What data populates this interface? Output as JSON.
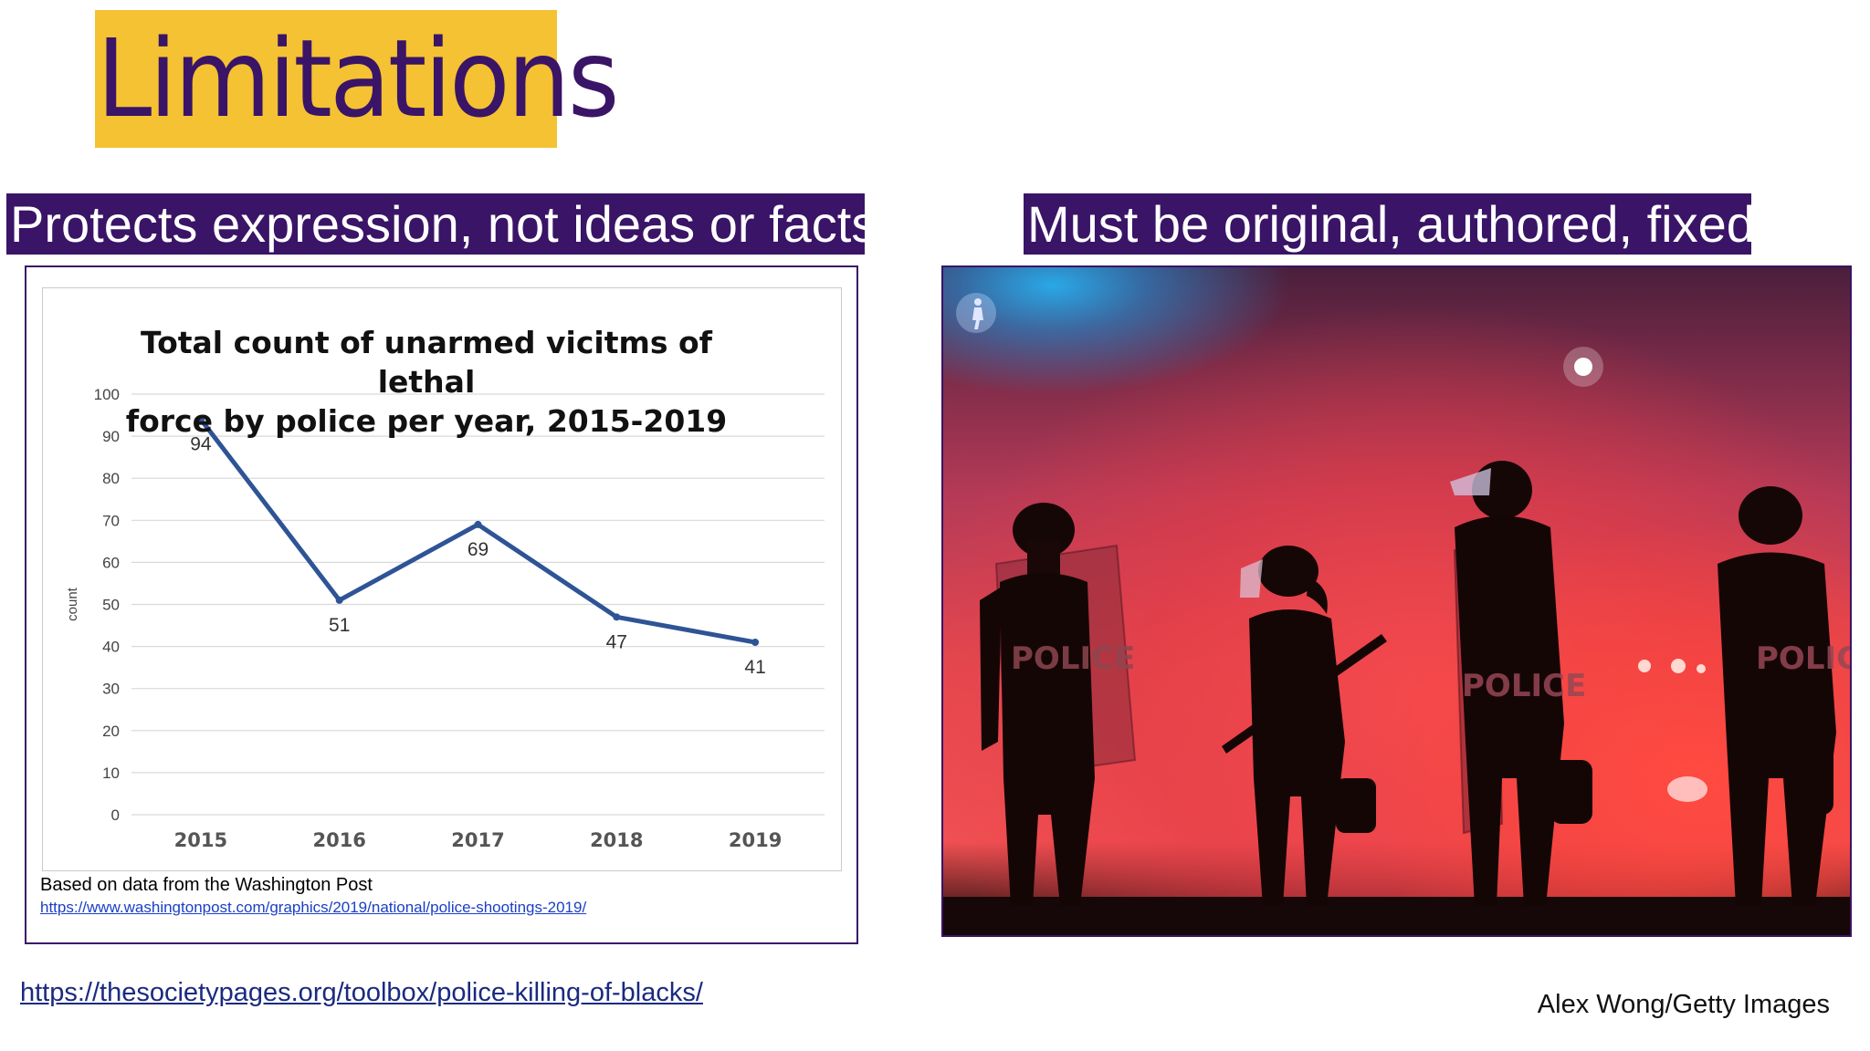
{
  "slide": {
    "title": "Limitations",
    "left_heading": "Protects expression, not ideas or facts",
    "right_heading": "Must be original, authored, fixed",
    "footer_link": "https://thesocietypages.org/toolbox/police-killing-of-blacks/",
    "photo_credit": "Alex Wong/Getty Images",
    "photo_text": "POLICE"
  },
  "chart_note": {
    "source": "Based on data from the Washington Post",
    "url": "https://www.washingtonpost.com/graphics/2019/national/police-shootings-2019/"
  },
  "colors": {
    "title_bg": "#f4c232",
    "accent_purple": "#3a1466",
    "line": "#2e5496"
  },
  "chart_data": {
    "type": "line",
    "title_line1": "Total count of unarmed vicitms of lethal",
    "title_line2": "force by police per year, 2015-2019",
    "xlabel": "",
    "ylabel": "count",
    "categories": [
      "2015",
      "2016",
      "2017",
      "2018",
      "2019"
    ],
    "values": [
      94,
      51,
      69,
      47,
      41
    ],
    "ylim": [
      0,
      100
    ],
    "yticks": [
      0,
      10,
      20,
      30,
      40,
      50,
      60,
      70,
      80,
      90,
      100
    ],
    "grid": true,
    "legend": "none",
    "data_labels": true
  }
}
